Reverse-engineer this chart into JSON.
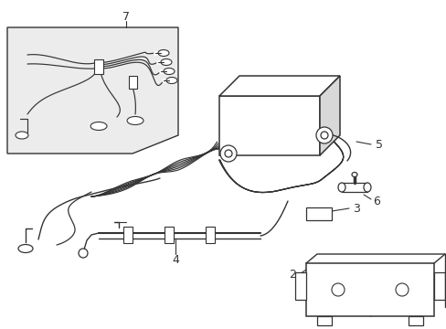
{
  "bg_color": "#ffffff",
  "line_color": "#333333",
  "box7_bg": "#ececec",
  "label_color": "#111111",
  "figsize": [
    4.89,
    3.6
  ],
  "dpi": 100
}
